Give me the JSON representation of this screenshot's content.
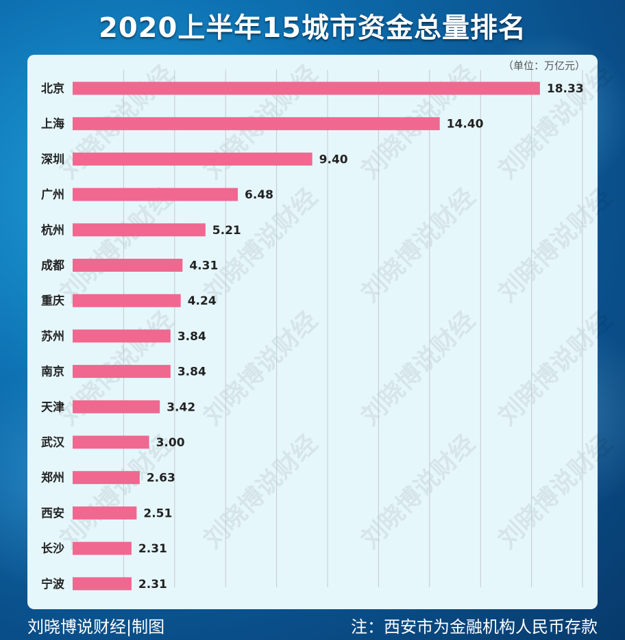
{
  "title": "2020上半年15城市资金总量排名",
  "unit": "（单位：万亿元）",
  "footer_left": "刘晓博说财经|制图",
  "footer_right": "注：西安市为金融机构人民币存款",
  "watermark": "刘晓博说财经",
  "colors": {
    "bar": "#f0688f",
    "panel": "#e6f7fc",
    "grid": "#c4c8cc"
  },
  "chart_data": {
    "type": "bar",
    "orientation": "horizontal",
    "title": "2020上半年15城市资金总量排名",
    "unit": "万亿元",
    "categories": [
      "北京",
      "上海",
      "深圳",
      "广州",
      "杭州",
      "成都",
      "重庆",
      "苏州",
      "南京",
      "天津",
      "武汉",
      "郑州",
      "西安",
      "长沙",
      "宁波"
    ],
    "values": [
      18.33,
      14.4,
      9.4,
      6.48,
      5.21,
      4.31,
      4.24,
      3.84,
      3.84,
      3.42,
      3.0,
      2.63,
      2.51,
      2.31,
      2.31
    ],
    "value_labels": [
      "18.33",
      "14.40",
      "9.40",
      "6.48",
      "5.21",
      "4.31",
      "4.24",
      "3.84",
      "3.84",
      "3.42",
      "3.00",
      "2.63",
      "2.51",
      "2.31",
      "2.31"
    ],
    "xlim": [
      0,
      20
    ],
    "grid": true
  }
}
